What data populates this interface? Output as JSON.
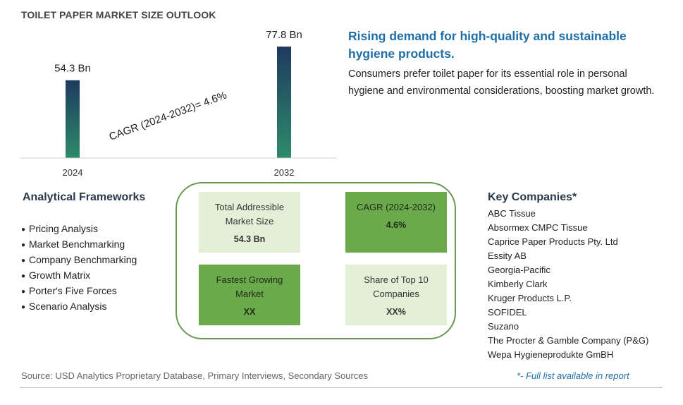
{
  "title": "TOILET PAPER MARKET SIZE OUTLOOK",
  "chart_data": {
    "type": "bar",
    "categories": [
      "2024",
      "2032"
    ],
    "values": [
      54.3,
      77.8
    ],
    "value_labels": [
      "54.3 Bn",
      "77.8 Bn"
    ],
    "annotation": "CAGR (2024-2032)=  4.6%",
    "ylim": [
      0,
      80
    ],
    "grid": false,
    "bar_color_top": "#1e3a5f",
    "bar_color_bottom": "#2e8b6a"
  },
  "headline": "Rising demand for high-quality and sustainable hygiene products.",
  "description": "Consumers prefer toilet paper for its essential role in personal hygiene and environmental considerations, boosting market growth.",
  "frameworks": {
    "title": "Analytical Frameworks",
    "items": [
      "Pricing Analysis",
      "Market Benchmarking",
      "Company Benchmarking",
      "Growth Matrix",
      "Porter's Five Forces",
      "Scenario Analysis"
    ]
  },
  "metrics": [
    {
      "label_line1": "Total Addressible",
      "label_line2": "Market Size",
      "value": "54.3 Bn"
    },
    {
      "label_line1": "CAGR (2024-2032)",
      "label_line2": "",
      "value": "4.6%"
    },
    {
      "label_line1": "Fastest Growing",
      "label_line2": "Market",
      "value": "XX"
    },
    {
      "label_line1": "Share of Top 10",
      "label_line2": "Companies",
      "value": "XX%"
    }
  ],
  "companies": {
    "title": "Key Companies*",
    "items": [
      "ABC Tissue",
      "Absormex CMPC Tissue",
      "Caprice Paper Products Pty. Ltd",
      "Essity AB",
      "Georgia-Pacific",
      "Kimberly Clark",
      "Kruger Products L.P.",
      "SOFIDEL",
      "Suzano",
      "The Procter & Gamble Company (P&G)",
      "Wepa Hygieneprodukte GmBH"
    ]
  },
  "source": "Source: USD Analytics Proprietary Database, Primary Interviews, Secondary Sources",
  "footnote": "*- Full list available in report",
  "colors": {
    "accent_blue": "#1f6fa8",
    "card_light": "#e3f0d7",
    "card_dark": "#6aaa4b",
    "box_border": "#6a9a52"
  }
}
